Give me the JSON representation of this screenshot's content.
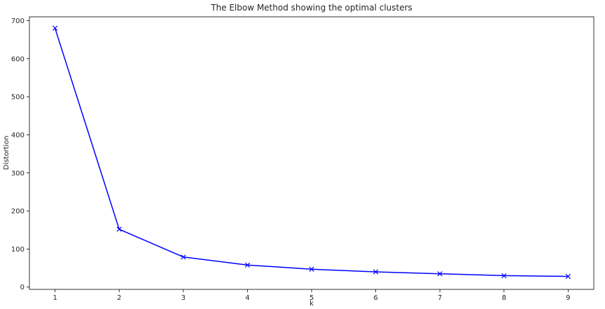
{
  "chart_data": {
    "type": "line",
    "title": "The Elbow Method showing the optimal clusters",
    "xlabel": "k",
    "ylabel": "Distortion",
    "x": [
      1,
      2,
      3,
      4,
      5,
      6,
      7,
      8,
      9
    ],
    "series": [
      {
        "values": [
          680,
          152,
          79,
          58,
          47,
          40,
          35,
          30,
          28
        ],
        "color": "#0000ff",
        "marker": "x"
      }
    ],
    "xlim": [
      0.6,
      9.4
    ],
    "ylim": [
      -6,
      710
    ],
    "xticks": [
      1,
      2,
      3,
      4,
      5,
      6,
      7,
      8,
      9
    ],
    "yticks": [
      0,
      100,
      200,
      300,
      400,
      500,
      600,
      700
    ],
    "grid": false,
    "legend": "none"
  }
}
